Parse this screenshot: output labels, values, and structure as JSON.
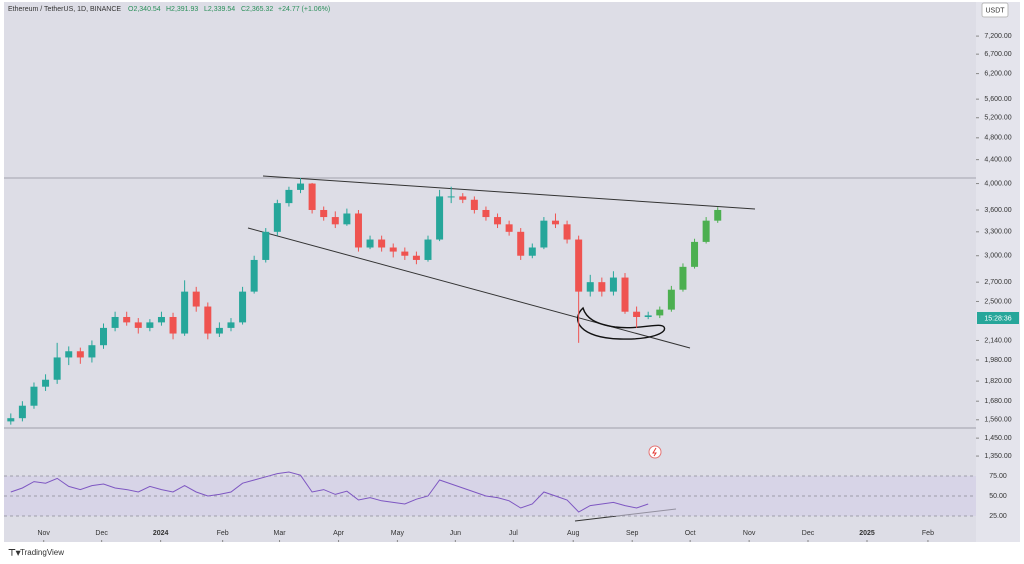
{
  "header": {
    "symbol": "Ethereum / TetherUS, 1D, BINANCE",
    "ohlc": [
      "O2,340.54",
      "H2,391.93",
      "L2,339.54",
      "C2,365.32"
    ],
    "change": "+24.77 (+1.06%)",
    "currency": "USDT",
    "countdown": "15:28:36",
    "brand": "TradingView"
  },
  "chart_data": [
    {
      "type": "candlestick",
      "log_scale": true,
      "grid": false,
      "categories": [
        null,
        null,
        null,
        null,
        null,
        null,
        null,
        null,
        null,
        null,
        null,
        null,
        null,
        null,
        null,
        null,
        null,
        null,
        null,
        null,
        null,
        null,
        null,
        null,
        null,
        null,
        null,
        null,
        null,
        null,
        null,
        null,
        null,
        null,
        null,
        null,
        null,
        null,
        null,
        null,
        null,
        null,
        null,
        null,
        null,
        null,
        null,
        null,
        null,
        null,
        null,
        null,
        null,
        null,
        null,
        null,
        null,
        null,
        null,
        null,
        null,
        null
      ],
      "xlim": [
        -0.5,
        83.2
      ],
      "xticks": [
        {
          "value": 2.84,
          "label": "Nov"
        },
        {
          "value": 7.84,
          "label": "Dec"
        },
        {
          "value": 12.93,
          "label": "2024"
        },
        {
          "value": 18.28,
          "label": "Feb"
        },
        {
          "value": 23.19,
          "label": "Mar"
        },
        {
          "value": 28.28,
          "label": "Apr"
        },
        {
          "value": 33.36,
          "label": "May"
        },
        {
          "value": 38.36,
          "label": "Jun"
        },
        {
          "value": 43.36,
          "label": "Jul"
        },
        {
          "value": 48.53,
          "label": "Aug"
        },
        {
          "value": 53.62,
          "label": "Sep"
        },
        {
          "value": 58.62,
          "label": "Oct"
        },
        {
          "value": 63.71,
          "label": "Nov"
        },
        {
          "value": 68.79,
          "label": "Dec"
        },
        {
          "value": 73.88,
          "label": "2025"
        },
        {
          "value": 79.14,
          "label": "Feb"
        }
      ],
      "ylim": [
        1277,
        8150
      ],
      "yticks": [
        {
          "value": 7200,
          "label": "7,200.00"
        },
        {
          "value": 6700,
          "label": "6,700.00"
        },
        {
          "value": 6200,
          "label": "6,200.00"
        },
        {
          "value": 5600,
          "label": "5,600.00"
        },
        {
          "value": 5200,
          "label": "5,200.00"
        },
        {
          "value": 4800,
          "label": "4,800.00"
        },
        {
          "value": 4400,
          "label": "4,400.00"
        },
        {
          "value": 4000,
          "label": "4,000.00"
        },
        {
          "value": 3600,
          "label": "3,600.00"
        },
        {
          "value": 3300,
          "label": "3,300.00"
        },
        {
          "value": 3000,
          "label": "3,000.00"
        },
        {
          "value": 2700,
          "label": "2,700.00"
        },
        {
          "value": 2500,
          "label": "2,500.00"
        },
        {
          "value": 2140,
          "label": "2,140.00"
        },
        {
          "value": 1980,
          "label": "1,980.00"
        },
        {
          "value": 1820,
          "label": "1,820.00"
        },
        {
          "value": 1680,
          "label": "1,680.00"
        },
        {
          "value": 1560,
          "label": "1,560.00"
        },
        {
          "value": 1450,
          "label": "1,450.00"
        },
        {
          "value": 1350,
          "label": "1,350.00"
        }
      ],
      "series": [
        {
          "up_color": "#26a69a",
          "down_color": "#ef5350",
          "open": [
            1550,
            1570,
            1650,
            1780,
            1830,
            2000,
            2050,
            2000,
            2100,
            2250,
            2350,
            2300,
            2250,
            2300,
            2350,
            2200,
            2600,
            2450,
            2200,
            2250,
            2300,
            2600,
            2950,
            3300,
            3700,
            3900,
            4000,
            3600,
            3500,
            3400,
            3550,
            3100,
            3200,
            3100,
            3050,
            3000,
            2950,
            3200,
            3800,
            3800,
            3750,
            3600,
            3500,
            3400,
            3300,
            3000,
            3100,
            3450,
            3400,
            3200,
            2600,
            2700,
            2600,
            2750,
            2400,
            2350,
            null,
            null,
            null,
            null,
            null,
            null
          ],
          "high": [
            1600,
            1680,
            1810,
            1870,
            2120,
            2090,
            2080,
            2140,
            2290,
            2400,
            2400,
            2340,
            2330,
            2400,
            2390,
            2720,
            2650,
            2490,
            2300,
            2340,
            2650,
            3000,
            3350,
            3750,
            3950,
            4090,
            4010,
            3650,
            3580,
            3620,
            3600,
            3250,
            3250,
            3150,
            3100,
            3050,
            3250,
            3900,
            3950,
            3850,
            3800,
            3650,
            3550,
            3450,
            3350,
            3150,
            3500,
            3550,
            3450,
            3250,
            2780,
            2750,
            2820,
            2800,
            2450,
            2400,
            null,
            null,
            null,
            null,
            null,
            null
          ],
          "low": [
            1530,
            1550,
            1630,
            1750,
            1800,
            1940,
            1950,
            1960,
            2070,
            2220,
            2270,
            2200,
            2220,
            2270,
            2150,
            2180,
            2400,
            2150,
            2170,
            2220,
            2280,
            2580,
            2920,
            3250,
            3650,
            3850,
            3550,
            3450,
            3350,
            3380,
            3050,
            3080,
            3050,
            2980,
            2950,
            2900,
            2930,
            3180,
            3700,
            3700,
            3550,
            3450,
            3350,
            3250,
            2950,
            2970,
            3080,
            3350,
            3150,
            2120,
            2550,
            2550,
            2560,
            2380,
            2250,
            2330,
            null,
            null,
            null,
            null,
            null,
            null
          ],
          "close": [
            1570,
            1650,
            1780,
            1830,
            2000,
            2050,
            2000,
            2100,
            2250,
            2350,
            2300,
            2250,
            2300,
            2350,
            2200,
            2600,
            2450,
            2200,
            2250,
            2300,
            2600,
            2950,
            3300,
            3700,
            3900,
            4000,
            3600,
            3500,
            3400,
            3550,
            3100,
            3200,
            3100,
            3050,
            3000,
            2950,
            3200,
            3800,
            3800,
            3750,
            3600,
            3500,
            3400,
            3300,
            3000,
            3100,
            3450,
            3400,
            3200,
            2600,
            2700,
            2600,
            2750,
            2400,
            2350,
            2365,
            null,
            null,
            null,
            null,
            null,
            null
          ]
        },
        {
          "color": "#4caf50",
          "open": [
            null,
            null,
            null,
            null,
            null,
            null,
            null,
            null,
            null,
            null,
            null,
            null,
            null,
            null,
            null,
            null,
            null,
            null,
            null,
            null,
            null,
            null,
            null,
            null,
            null,
            null,
            null,
            null,
            null,
            null,
            null,
            null,
            null,
            null,
            null,
            null,
            null,
            null,
            null,
            null,
            null,
            null,
            null,
            null,
            null,
            null,
            null,
            null,
            null,
            null,
            null,
            null,
            null,
            null,
            null,
            null,
            2365,
            2420,
            2620,
            2870,
            3170,
            3450
          ],
          "high": [
            null,
            null,
            null,
            null,
            null,
            null,
            null,
            null,
            null,
            null,
            null,
            null,
            null,
            null,
            null,
            null,
            null,
            null,
            null,
            null,
            null,
            null,
            null,
            null,
            null,
            null,
            null,
            null,
            null,
            null,
            null,
            null,
            null,
            null,
            null,
            null,
            null,
            null,
            null,
            null,
            null,
            null,
            null,
            null,
            null,
            null,
            null,
            null,
            null,
            null,
            null,
            null,
            null,
            null,
            null,
            null,
            2450,
            2660,
            2910,
            3210,
            3500,
            3640
          ],
          "low": [
            null,
            null,
            null,
            null,
            null,
            null,
            null,
            null,
            null,
            null,
            null,
            null,
            null,
            null,
            null,
            null,
            null,
            null,
            null,
            null,
            null,
            null,
            null,
            null,
            null,
            null,
            null,
            null,
            null,
            null,
            null,
            null,
            null,
            null,
            null,
            null,
            null,
            null,
            null,
            null,
            null,
            null,
            null,
            null,
            null,
            null,
            null,
            null,
            null,
            null,
            null,
            null,
            null,
            null,
            null,
            null,
            2340,
            2400,
            2600,
            2850,
            3150,
            3420
          ],
          "close": [
            null,
            null,
            null,
            null,
            null,
            null,
            null,
            null,
            null,
            null,
            null,
            null,
            null,
            null,
            null,
            null,
            null,
            null,
            null,
            null,
            null,
            null,
            null,
            null,
            null,
            null,
            null,
            null,
            null,
            null,
            null,
            null,
            null,
            null,
            null,
            null,
            null,
            null,
            null,
            null,
            null,
            null,
            null,
            null,
            null,
            null,
            null,
            null,
            null,
            null,
            null,
            null,
            null,
            null,
            null,
            null,
            2420,
            2620,
            2870,
            3170,
            3450,
            3600
          ]
        }
      ]
    },
    {
      "type": "line",
      "color": "#7e57c2",
      "ylim": [
        0,
        100
      ],
      "yticks": [
        {
          "value": 75,
          "label": "75.00"
        },
        {
          "value": 50,
          "label": "50.00"
        },
        {
          "value": 25,
          "label": "25.00"
        }
      ],
      "values": [
        55,
        60,
        68,
        66,
        72,
        62,
        58,
        63,
        65,
        60,
        58,
        55,
        62,
        58,
        55,
        63,
        55,
        50,
        52,
        55,
        66,
        70,
        74,
        78,
        80,
        76,
        55,
        58,
        52,
        56,
        45,
        48,
        44,
        42,
        40,
        46,
        50,
        70,
        65,
        60,
        55,
        50,
        48,
        44,
        35,
        40,
        55,
        50,
        45,
        30,
        38,
        40,
        42,
        38,
        35,
        40
      ]
    }
  ]
}
